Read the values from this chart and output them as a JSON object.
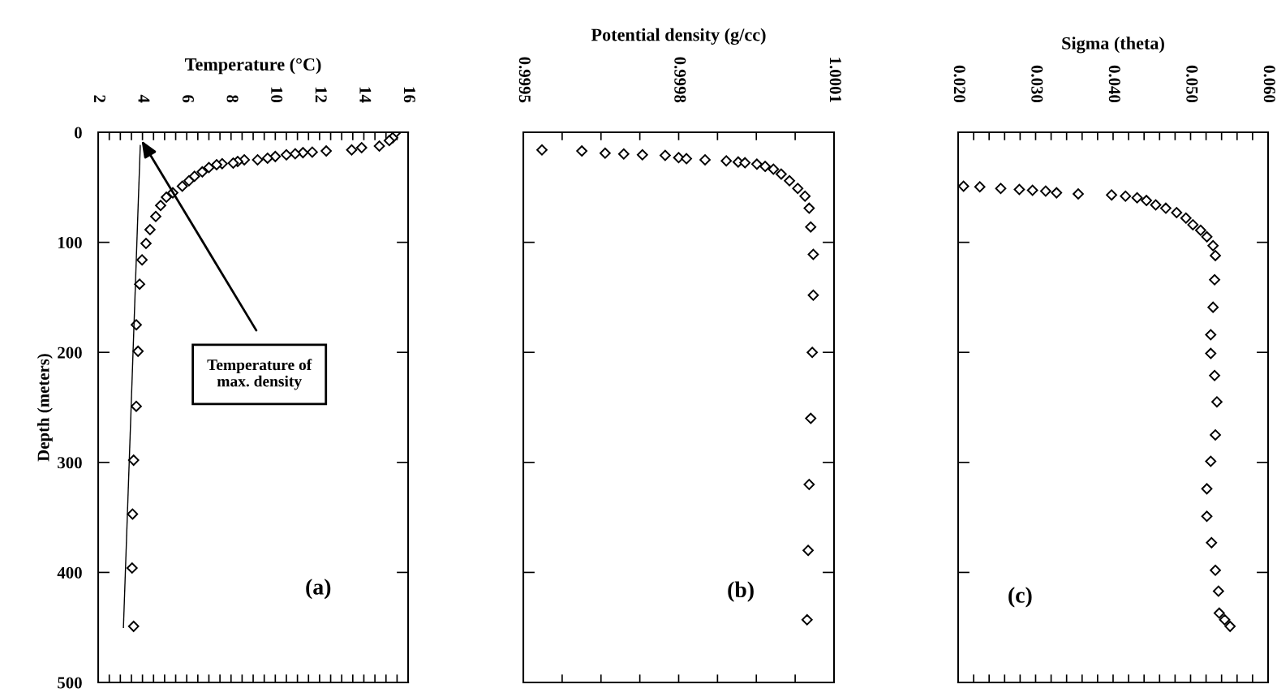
{
  "chart_data": [
    {
      "type": "scatter",
      "xlabel": "Temperature (°C)",
      "ylabel": "Depth (meters)",
      "xlim": [
        2,
        16
      ],
      "ylim": [
        500,
        0
      ],
      "xticks": [
        2,
        {
          "value": 2.5,
          "label": null
        },
        {
          "value": 3,
          "label": null
        },
        {
          "value": 3.5,
          "label": null
        },
        4,
        {
          "value": 4.5,
          "label": null
        },
        {
          "value": 5,
          "label": null
        },
        {
          "value": 5.5,
          "label": null
        },
        6,
        {
          "value": 6.5,
          "label": null
        },
        {
          "value": 7,
          "label": null
        },
        {
          "value": 7.5,
          "label": null
        },
        8,
        {
          "value": 8.5,
          "label": null
        },
        {
          "value": 9,
          "label": null
        },
        {
          "value": 9.5,
          "label": null
        },
        10,
        {
          "value": 10.5,
          "label": null
        },
        {
          "value": 11,
          "label": null
        },
        {
          "value": 11.5,
          "label": null
        },
        12,
        {
          "value": 12.5,
          "label": null
        },
        {
          "value": 13,
          "label": null
        },
        {
          "value": 13.5,
          "label": null
        },
        14,
        {
          "value": 14.5,
          "label": null
        },
        {
          "value": 15,
          "label": null
        },
        {
          "value": 15.5,
          "label": null
        },
        16
      ],
      "yticks": [
        0,
        100,
        200,
        300,
        400,
        500
      ],
      "series": [
        {
          "color": "#000000",
          "marker": "diamond",
          "x": [
            15.45,
            15.3,
            15.15,
            14.7,
            13.9,
            13.45,
            12.3,
            11.67,
            11.25,
            10.9,
            10.5,
            10.0,
            9.65,
            9.2,
            8.6,
            8.3,
            8.1,
            7.6,
            7.35,
            7.0,
            6.7,
            6.35,
            6.1,
            5.8,
            5.37,
            5.08,
            4.82,
            4.6,
            4.34,
            4.16,
            3.98,
            3.87,
            3.72,
            3.8,
            3.72,
            3.6,
            3.55,
            3.53,
            3.6
          ],
          "values": [
            0,
            5,
            7.5,
            12.5,
            14,
            16,
            17,
            18,
            18.5,
            19.5,
            20.5,
            22,
            23.5,
            25,
            25,
            26.5,
            28,
            28.5,
            29.5,
            32,
            36,
            40,
            44,
            49,
            55,
            59,
            66.5,
            76.5,
            88.5,
            101,
            116,
            138,
            175,
            199,
            249,
            298,
            347,
            396,
            449
          ]
        },
        {
          "type": "line",
          "color": "#000000",
          "marker": "none",
          "x": [
            3.9,
            3.14
          ],
          "values": [
            12,
            450
          ]
        }
      ],
      "annotations": [
        "(a)",
        "Temperature of\nmax. density"
      ]
    },
    {
      "type": "scatter",
      "xlabel": "Potential density (g/cc)",
      "marker": "diamond",
      "tick_labels": "x",
      "xlim": [
        0.9995,
        1.0001
      ],
      "ylim": [
        500,
        0
      ],
      "xticks": [
        0.9995,
        {
          "value": 0.999575,
          "label": null
        },
        {
          "value": 0.99965,
          "label": null
        },
        {
          "value": 0.999725,
          "label": null
        },
        0.9998,
        {
          "value": 0.999875,
          "label": null
        },
        {
          "value": 0.99995,
          "label": null
        },
        {
          "value": 1.000025,
          "label": null
        },
        1.0001
      ],
      "yticks": [
        0,
        100,
        200,
        300,
        400,
        500
      ],
      "series": [
        {
          "color": "#000000",
          "x": [
            0.999536,
            0.999613,
            0.999658,
            0.999694,
            0.99973,
            0.999774,
            0.9998,
            0.999815,
            0.999851,
            0.999892,
            0.999915,
            0.999928,
            0.999951,
            0.999967,
            0.999983,
            0.999998,
            1.000014,
            1.00003,
            1.000044,
            1.000052,
            1.000055,
            1.00006,
            1.00006,
            1.000058,
            1.000055,
            1.000052,
            1.00005,
            1.000048
          ],
          "values": [
            16,
            17,
            19,
            19.7,
            20.4,
            21,
            23,
            24,
            25,
            26,
            27,
            27.7,
            29,
            31,
            33.5,
            38,
            44,
            51,
            58,
            69,
            86,
            111,
            148,
            200,
            260,
            320,
            380,
            443
          ]
        }
      ],
      "annotations": [
        "(b)"
      ]
    },
    {
      "type": "scatter",
      "xlabel": "Sigma (theta)",
      "marker": "diamond",
      "tick_labels": "x",
      "xlim": [
        0.02,
        0.06
      ],
      "ylim": [
        500,
        0
      ],
      "xticks": [
        {
          "value": 0.02,
          "label": "0.020"
        },
        {
          "value": 0.022,
          "label": null
        },
        {
          "value": 0.024,
          "label": null
        },
        {
          "value": 0.026,
          "label": null
        },
        {
          "value": 0.028,
          "label": null
        },
        {
          "value": 0.03,
          "label": "0.030"
        },
        {
          "value": 0.032,
          "label": null
        },
        {
          "value": 0.034,
          "label": null
        },
        {
          "value": 0.036,
          "label": null
        },
        {
          "value": 0.038,
          "label": null
        },
        {
          "value": 0.04,
          "label": "0.040"
        },
        {
          "value": 0.042,
          "label": null
        },
        {
          "value": 0.044,
          "label": null
        },
        {
          "value": 0.046,
          "label": null
        },
        {
          "value": 0.048,
          "label": null
        },
        {
          "value": 0.05,
          "label": "0.050"
        },
        {
          "value": 0.052,
          "label": null
        },
        {
          "value": 0.054,
          "label": null
        },
        {
          "value": 0.056,
          "label": null
        },
        {
          "value": 0.058,
          "label": null
        },
        {
          "value": 0.06,
          "label": "0.060"
        }
      ],
      "yticks": [
        0,
        100,
        200,
        300,
        400,
        500
      ],
      "series": [
        {
          "color": "#000000",
          "x": [
            0.0207,
            0.0228,
            0.0255,
            0.0279,
            0.0296,
            0.0313,
            0.0327,
            0.0355,
            0.0398,
            0.0416,
            0.0431,
            0.0443,
            0.0455,
            0.0468,
            0.0482,
            0.0494,
            0.0503,
            0.0513,
            0.0521,
            0.0529,
            0.0532,
            0.0531,
            0.0529,
            0.0526,
            0.0526,
            0.0531,
            0.0534,
            0.0532,
            0.0526,
            0.0521,
            0.0521,
            0.0527,
            0.0532,
            0.0536,
            0.0537,
            0.0544,
            0.0551
          ],
          "values": [
            49,
            49.6,
            51,
            52,
            52.7,
            53.4,
            55,
            56,
            57,
            58,
            59.5,
            62,
            66,
            69,
            73,
            78,
            84,
            89,
            95,
            103,
            112,
            134,
            159,
            184,
            201,
            221,
            245,
            275,
            299,
            324,
            349,
            373,
            398,
            417,
            437,
            443,
            449
          ]
        }
      ],
      "annotations": [
        "(c)"
      ]
    }
  ]
}
